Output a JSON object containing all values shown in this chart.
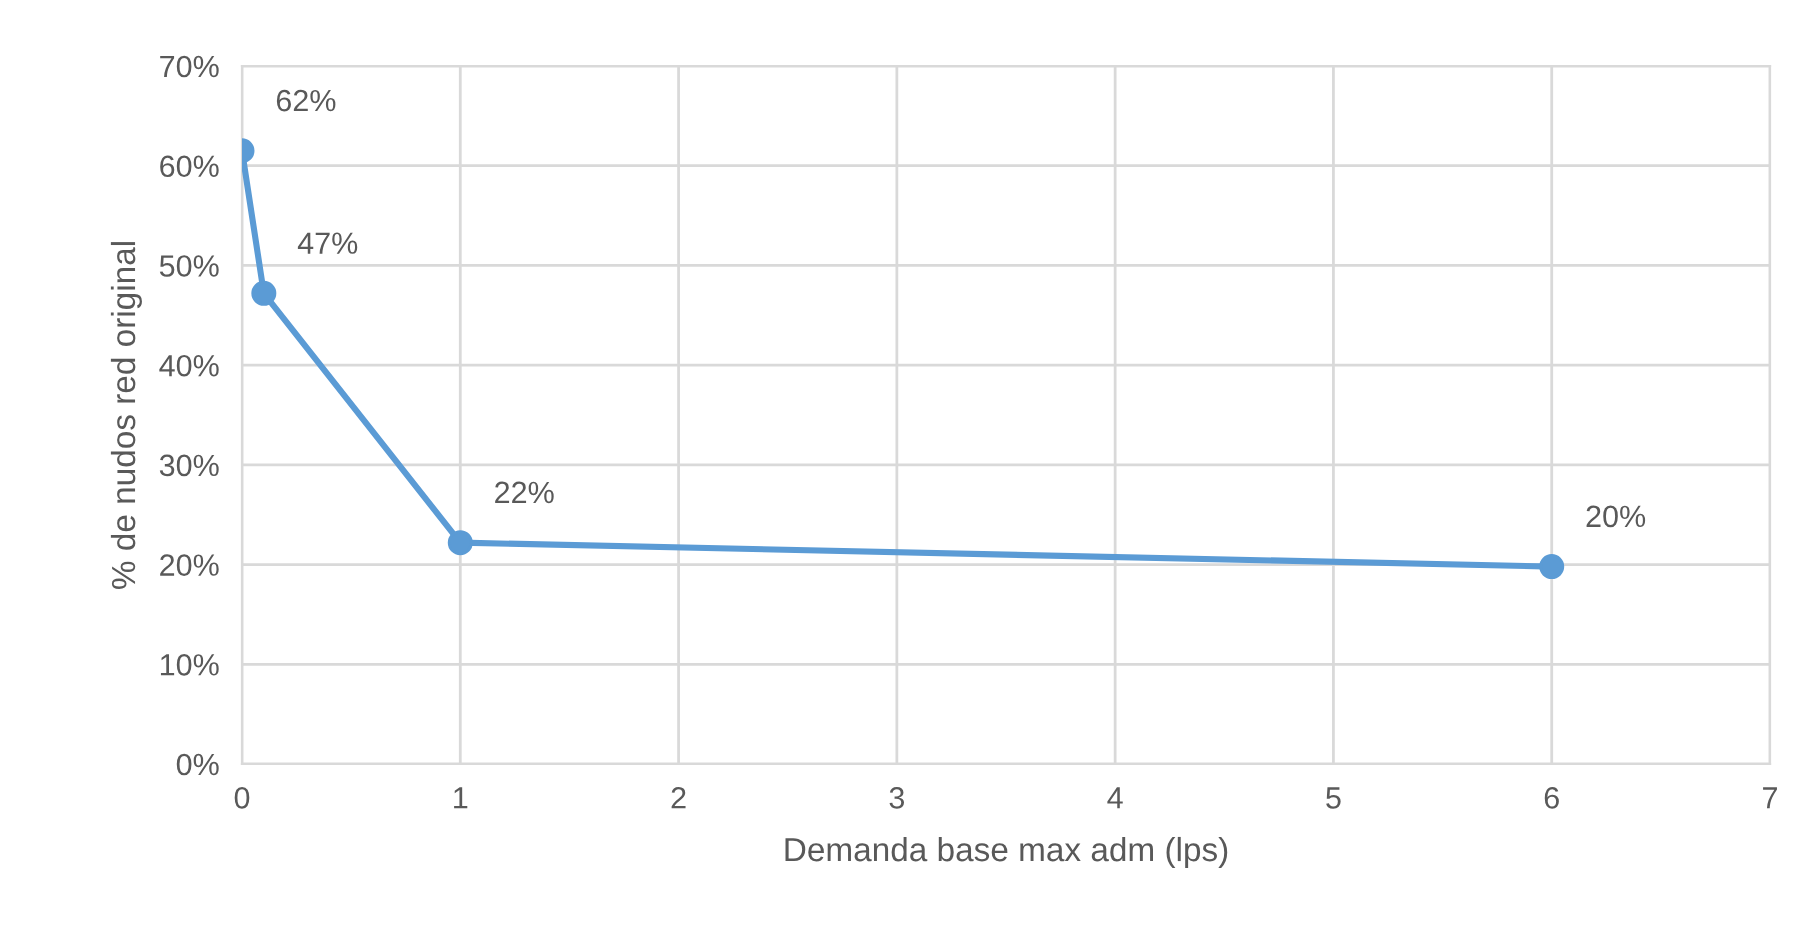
{
  "chart_data": {
    "type": "line",
    "xlabel": "Demanda base max adm (lps)",
    "ylabel": "% de nudos red original",
    "x": [
      0,
      0.1,
      1,
      6
    ],
    "series": [
      {
        "color": "#5b9bd5",
        "values": [
          61.5,
          47.2,
          22.2,
          19.8
        ],
        "value_labels": [
          "62%",
          "47%",
          "22%",
          "20%"
        ]
      }
    ],
    "xlim": [
      0,
      7
    ],
    "xticks": [
      0,
      1,
      2,
      3,
      4,
      5,
      6,
      7
    ],
    "ylim": [
      0,
      70
    ],
    "yticks": [
      {
        "value": 0,
        "label": "0%"
      },
      {
        "value": 10,
        "label": "10%"
      },
      {
        "value": 20,
        "label": "20%"
      },
      {
        "value": 30,
        "label": "30%"
      },
      {
        "value": 40,
        "label": "40%"
      },
      {
        "value": 50,
        "label": "50%"
      },
      {
        "value": 60,
        "label": "60%"
      },
      {
        "value": 70,
        "label": "70%"
      }
    ],
    "grid": true,
    "marker": "circle",
    "line_style": "solid"
  }
}
